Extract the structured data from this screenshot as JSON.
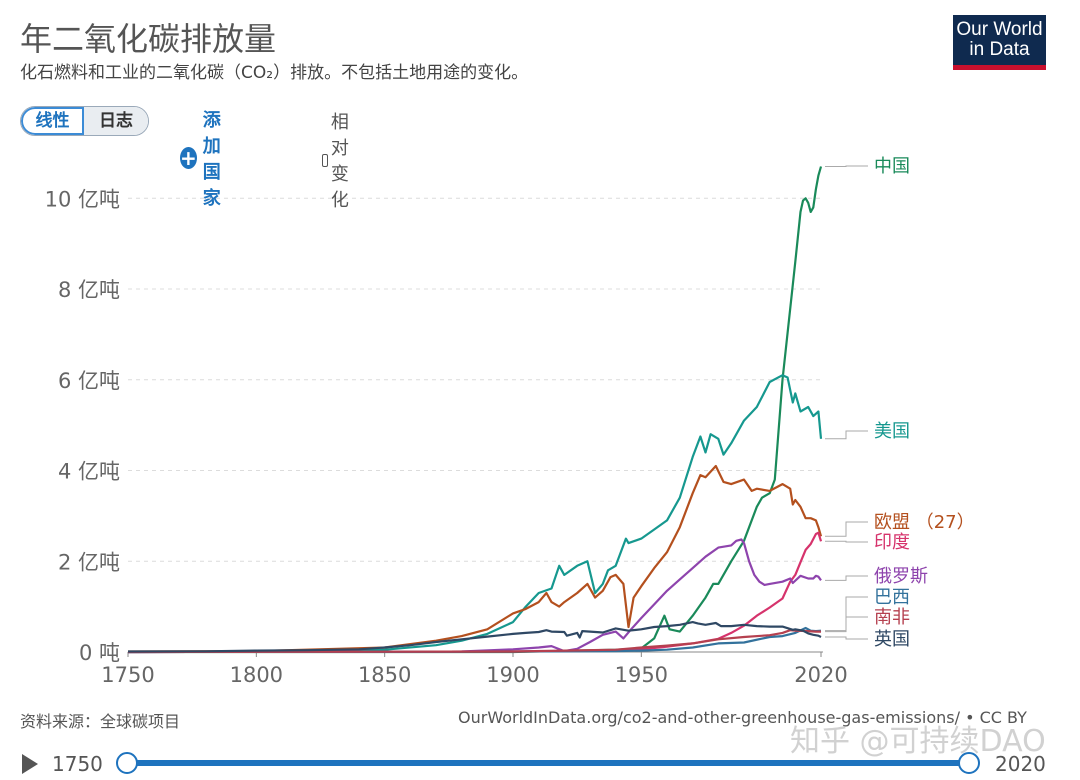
{
  "header": {
    "title": "年二氧化碳排放量",
    "subtitle": "化石燃料和工业的二氧化碳（CO₂）排放。不包括土地用途的变化。",
    "logo_line1": "Our World",
    "logo_line2": "in Data"
  },
  "controls": {
    "linear_label": "线性",
    "log_label": "日志",
    "add_country_label": "添加国家",
    "relative_change_label": "相对变化"
  },
  "footer": {
    "source": "资料来源：全球碳项目",
    "url": "OurWorldInData.org/co2-and-other-greenhouse-gas-emissions/ • CC BY",
    "watermark": "知乎 @可持续DAO"
  },
  "timeline": {
    "start_label": "1750",
    "end_label": "2020",
    "start_value": 1750,
    "end_value": 2020
  },
  "chart_data": {
    "type": "line",
    "xlim": [
      1750,
      2020
    ],
    "ylim": [
      0,
      10.8
    ],
    "grid": true,
    "legend_placement": "right",
    "x_ticks": [
      {
        "value": 1750,
        "label": "1750"
      },
      {
        "value": 1800,
        "label": "1800"
      },
      {
        "value": 1850,
        "label": "1850"
      },
      {
        "value": 1900,
        "label": "1900"
      },
      {
        "value": 1950,
        "label": "1950"
      },
      {
        "value": 2020,
        "label": "2020"
      }
    ],
    "y_ticks": [
      {
        "value": 0,
        "label": "0 吨"
      },
      {
        "value": 2,
        "label": "2 亿吨"
      },
      {
        "value": 4,
        "label": "4 亿吨"
      },
      {
        "value": 6,
        "label": "6 亿吨"
      },
      {
        "value": 8,
        "label": "8 亿吨"
      },
      {
        "value": 10,
        "label": "10 亿吨"
      }
    ],
    "series": [
      {
        "name": "中国",
        "color": "#1a8a5a",
        "points": [
          [
            1750,
            0
          ],
          [
            1900,
            0
          ],
          [
            1940,
            0.05
          ],
          [
            1950,
            0.08
          ],
          [
            1955,
            0.3
          ],
          [
            1959,
            0.8
          ],
          [
            1961,
            0.5
          ],
          [
            1965,
            0.45
          ],
          [
            1970,
            0.8
          ],
          [
            1975,
            1.2
          ],
          [
            1978,
            1.5
          ],
          [
            1980,
            1.5
          ],
          [
            1985,
            2.0
          ],
          [
            1990,
            2.45
          ],
          [
            1995,
            3.2
          ],
          [
            1997,
            3.4
          ],
          [
            2000,
            3.5
          ],
          [
            2002,
            3.8
          ],
          [
            2005,
            6.0
          ],
          [
            2010,
            8.6
          ],
          [
            2012,
            9.7
          ],
          [
            2013,
            9.95
          ],
          [
            2014,
            10.0
          ],
          [
            2015,
            9.9
          ],
          [
            2016,
            9.7
          ],
          [
            2017,
            9.8
          ],
          [
            2018,
            10.2
          ],
          [
            2019,
            10.5
          ],
          [
            2020,
            10.7
          ]
        ]
      },
      {
        "name": "美国",
        "color": "#16988f",
        "points": [
          [
            1750,
            0
          ],
          [
            1800,
            0.01
          ],
          [
            1850,
            0.05
          ],
          [
            1870,
            0.15
          ],
          [
            1880,
            0.25
          ],
          [
            1890,
            0.4
          ],
          [
            1900,
            0.66
          ],
          [
            1905,
            1.0
          ],
          [
            1910,
            1.3
          ],
          [
            1915,
            1.4
          ],
          [
            1918,
            1.9
          ],
          [
            1920,
            1.7
          ],
          [
            1925,
            1.9
          ],
          [
            1929,
            2.0
          ],
          [
            1932,
            1.3
          ],
          [
            1935,
            1.5
          ],
          [
            1937,
            1.8
          ],
          [
            1940,
            1.9
          ],
          [
            1944,
            2.5
          ],
          [
            1945,
            2.4
          ],
          [
            1950,
            2.5
          ],
          [
            1955,
            2.7
          ],
          [
            1960,
            2.9
          ],
          [
            1965,
            3.4
          ],
          [
            1970,
            4.3
          ],
          [
            1973,
            4.75
          ],
          [
            1975,
            4.4
          ],
          [
            1977,
            4.8
          ],
          [
            1980,
            4.7
          ],
          [
            1982,
            4.35
          ],
          [
            1985,
            4.6
          ],
          [
            1990,
            5.1
          ],
          [
            1995,
            5.4
          ],
          [
            2000,
            5.95
          ],
          [
            2005,
            6.1
          ],
          [
            2007,
            6.05
          ],
          [
            2009,
            5.5
          ],
          [
            2010,
            5.7
          ],
          [
            2012,
            5.3
          ],
          [
            2015,
            5.4
          ],
          [
            2017,
            5.2
          ],
          [
            2019,
            5.3
          ],
          [
            2020,
            4.7
          ]
        ]
      },
      {
        "name": "欧盟 （27）",
        "color": "#b4501e",
        "points": [
          [
            1750,
            0.01
          ],
          [
            1800,
            0.02
          ],
          [
            1850,
            0.1
          ],
          [
            1870,
            0.25
          ],
          [
            1880,
            0.35
          ],
          [
            1890,
            0.5
          ],
          [
            1900,
            0.85
          ],
          [
            1905,
            0.95
          ],
          [
            1910,
            1.1
          ],
          [
            1913,
            1.3
          ],
          [
            1915,
            1.1
          ],
          [
            1918,
            1.0
          ],
          [
            1920,
            1.1
          ],
          [
            1925,
            1.3
          ],
          [
            1929,
            1.5
          ],
          [
            1932,
            1.2
          ],
          [
            1935,
            1.35
          ],
          [
            1938,
            1.65
          ],
          [
            1940,
            1.7
          ],
          [
            1943,
            1.5
          ],
          [
            1945,
            0.55
          ],
          [
            1947,
            1.2
          ],
          [
            1950,
            1.45
          ],
          [
            1955,
            1.85
          ],
          [
            1960,
            2.2
          ],
          [
            1965,
            2.75
          ],
          [
            1970,
            3.5
          ],
          [
            1973,
            3.9
          ],
          [
            1975,
            3.85
          ],
          [
            1979,
            4.1
          ],
          [
            1982,
            3.75
          ],
          [
            1985,
            3.7
          ],
          [
            1990,
            3.8
          ],
          [
            1993,
            3.55
          ],
          [
            1995,
            3.6
          ],
          [
            2000,
            3.55
          ],
          [
            2005,
            3.7
          ],
          [
            2008,
            3.6
          ],
          [
            2009,
            3.25
          ],
          [
            2010,
            3.35
          ],
          [
            2012,
            3.2
          ],
          [
            2014,
            2.95
          ],
          [
            2016,
            2.95
          ],
          [
            2018,
            2.9
          ],
          [
            2019,
            2.75
          ],
          [
            2020,
            2.55
          ]
        ]
      },
      {
        "name": "印度",
        "color": "#d6336c",
        "points": [
          [
            1750,
            0
          ],
          [
            1900,
            0.01
          ],
          [
            1920,
            0.02
          ],
          [
            1940,
            0.03
          ],
          [
            1950,
            0.06
          ],
          [
            1960,
            0.12
          ],
          [
            1970,
            0.19
          ],
          [
            1980,
            0.29
          ],
          [
            1985,
            0.42
          ],
          [
            1990,
            0.58
          ],
          [
            1995,
            0.8
          ],
          [
            2000,
            0.98
          ],
          [
            2005,
            1.18
          ],
          [
            2008,
            1.55
          ],
          [
            2010,
            1.7
          ],
          [
            2012,
            1.98
          ],
          [
            2014,
            2.25
          ],
          [
            2016,
            2.38
          ],
          [
            2018,
            2.6
          ],
          [
            2019,
            2.63
          ],
          [
            2020,
            2.44
          ]
        ]
      },
      {
        "name": "俄罗斯",
        "color": "#8e44ad",
        "points": [
          [
            1750,
            0
          ],
          [
            1880,
            0.01
          ],
          [
            1900,
            0.06
          ],
          [
            1910,
            0.1
          ],
          [
            1915,
            0.13
          ],
          [
            1920,
            0.02
          ],
          [
            1925,
            0.07
          ],
          [
            1930,
            0.22
          ],
          [
            1935,
            0.38
          ],
          [
            1940,
            0.45
          ],
          [
            1943,
            0.3
          ],
          [
            1946,
            0.5
          ],
          [
            1950,
            0.75
          ],
          [
            1955,
            1.05
          ],
          [
            1960,
            1.35
          ],
          [
            1965,
            1.6
          ],
          [
            1970,
            1.85
          ],
          [
            1975,
            2.1
          ],
          [
            1980,
            2.3
          ],
          [
            1985,
            2.35
          ],
          [
            1987,
            2.45
          ],
          [
            1989,
            2.48
          ],
          [
            1990,
            2.4
          ],
          [
            1992,
            2.0
          ],
          [
            1994,
            1.7
          ],
          [
            1996,
            1.55
          ],
          [
            1998,
            1.48
          ],
          [
            2000,
            1.5
          ],
          [
            2005,
            1.55
          ],
          [
            2008,
            1.62
          ],
          [
            2009,
            1.52
          ],
          [
            2012,
            1.68
          ],
          [
            2015,
            1.62
          ],
          [
            2017,
            1.62
          ],
          [
            2018,
            1.68
          ],
          [
            2019,
            1.66
          ],
          [
            2020,
            1.58
          ]
        ]
      },
      {
        "name": "巴西",
        "color": "#33729c",
        "points": [
          [
            1750,
            0
          ],
          [
            1900,
            0.01
          ],
          [
            1940,
            0.02
          ],
          [
            1950,
            0.03
          ],
          [
            1960,
            0.05
          ],
          [
            1970,
            0.1
          ],
          [
            1980,
            0.19
          ],
          [
            1990,
            0.21
          ],
          [
            2000,
            0.33
          ],
          [
            2005,
            0.35
          ],
          [
            2010,
            0.42
          ],
          [
            2014,
            0.53
          ],
          [
            2016,
            0.47
          ],
          [
            2018,
            0.46
          ],
          [
            2020,
            0.47
          ]
        ]
      },
      {
        "name": "南非",
        "color": "#b5404f",
        "points": [
          [
            1750,
            0
          ],
          [
            1900,
            0.01
          ],
          [
            1920,
            0.03
          ],
          [
            1940,
            0.05
          ],
          [
            1950,
            0.1
          ],
          [
            1960,
            0.14
          ],
          [
            1970,
            0.19
          ],
          [
            1980,
            0.28
          ],
          [
            1990,
            0.33
          ],
          [
            2000,
            0.37
          ],
          [
            2005,
            0.42
          ],
          [
            2008,
            0.48
          ],
          [
            2010,
            0.47
          ],
          [
            2015,
            0.46
          ],
          [
            2018,
            0.45
          ],
          [
            2020,
            0.45
          ]
        ]
      },
      {
        "name": "英国",
        "color": "#2f4864",
        "points": [
          [
            1750,
            0.01
          ],
          [
            1780,
            0.015
          ],
          [
            1800,
            0.03
          ],
          [
            1820,
            0.04
          ],
          [
            1840,
            0.06
          ],
          [
            1850,
            0.1
          ],
          [
            1860,
            0.15
          ],
          [
            1870,
            0.22
          ],
          [
            1880,
            0.28
          ],
          [
            1890,
            0.34
          ],
          [
            1900,
            0.4
          ],
          [
            1905,
            0.42
          ],
          [
            1910,
            0.44
          ],
          [
            1913,
            0.48
          ],
          [
            1915,
            0.45
          ],
          [
            1920,
            0.44
          ],
          [
            1921,
            0.36
          ],
          [
            1925,
            0.42
          ],
          [
            1926,
            0.32
          ],
          [
            1927,
            0.46
          ],
          [
            1930,
            0.45
          ],
          [
            1935,
            0.43
          ],
          [
            1940,
            0.52
          ],
          [
            1945,
            0.47
          ],
          [
            1950,
            0.5
          ],
          [
            1955,
            0.55
          ],
          [
            1960,
            0.57
          ],
          [
            1965,
            0.6
          ],
          [
            1970,
            0.66
          ],
          [
            1972,
            0.63
          ],
          [
            1975,
            0.6
          ],
          [
            1979,
            0.64
          ],
          [
            1981,
            0.57
          ],
          [
            1985,
            0.57
          ],
          [
            1990,
            0.6
          ],
          [
            1995,
            0.57
          ],
          [
            2000,
            0.56
          ],
          [
            2005,
            0.56
          ],
          [
            2009,
            0.49
          ],
          [
            2010,
            0.5
          ],
          [
            2013,
            0.47
          ],
          [
            2015,
            0.41
          ],
          [
            2017,
            0.38
          ],
          [
            2019,
            0.36
          ],
          [
            2020,
            0.33
          ]
        ]
      }
    ]
  }
}
